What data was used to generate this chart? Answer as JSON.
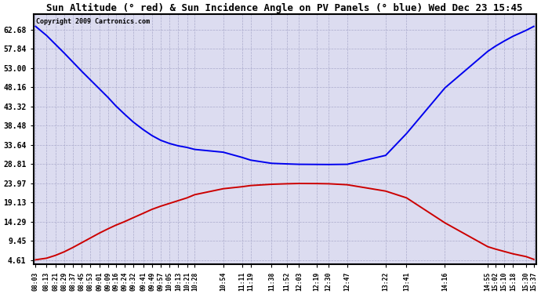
{
  "title": "Sun Altitude (° red) & Sun Incidence Angle on PV Panels (° blue) Wed Dec 23 15:45",
  "copyright": "Copyright 2009 Cartronics.com",
  "background_color": "#ffffff",
  "plot_bg_color": "#dcdcf0",
  "blue_color": "#0000ee",
  "red_color": "#cc0000",
  "grid_color": "#aaaacc",
  "yticks": [
    4.61,
    9.45,
    14.29,
    19.13,
    23.97,
    28.81,
    33.64,
    38.48,
    43.32,
    48.16,
    53.0,
    57.84,
    62.68
  ],
  "xtick_labels": [
    "08:03",
    "08:13",
    "08:21",
    "08:29",
    "08:37",
    "08:45",
    "08:53",
    "09:01",
    "09:09",
    "09:16",
    "09:24",
    "09:32",
    "09:41",
    "09:49",
    "09:57",
    "10:05",
    "10:13",
    "10:21",
    "10:28",
    "10:54",
    "11:11",
    "11:19",
    "11:38",
    "11:52",
    "12:03",
    "12:19",
    "12:30",
    "12:47",
    "13:22",
    "13:41",
    "14:16",
    "14:55",
    "15:02",
    "15:10",
    "15:18",
    "15:30",
    "15:37"
  ],
  "xtick_minutes": [
    483,
    493,
    501,
    509,
    517,
    525,
    533,
    541,
    549,
    556,
    564,
    572,
    581,
    589,
    597,
    605,
    613,
    621,
    628,
    654,
    671,
    679,
    698,
    712,
    723,
    739,
    750,
    767,
    802,
    821,
    856,
    895,
    902,
    910,
    918,
    930,
    937
  ],
  "blue_y": [
    63.5,
    61.2,
    59.0,
    56.8,
    54.5,
    52.2,
    50.0,
    47.8,
    45.6,
    43.5,
    41.4,
    39.4,
    37.5,
    36.0,
    34.8,
    34.0,
    33.4,
    33.0,
    32.5,
    31.8,
    30.5,
    29.8,
    29.0,
    28.85,
    28.75,
    28.72,
    28.7,
    28.75,
    31.0,
    36.5,
    48.0,
    57.2,
    58.5,
    59.8,
    61.0,
    62.5,
    63.5
  ],
  "red_y": [
    4.7,
    5.1,
    5.8,
    6.7,
    7.8,
    9.0,
    10.2,
    11.4,
    12.5,
    13.4,
    14.3,
    15.3,
    16.4,
    17.4,
    18.2,
    18.9,
    19.6,
    20.3,
    21.1,
    22.6,
    23.1,
    23.4,
    23.72,
    23.85,
    23.92,
    23.9,
    23.85,
    23.6,
    22.0,
    20.3,
    14.0,
    8.0,
    7.4,
    6.8,
    6.2,
    5.5,
    4.8
  ],
  "ylim_min": 3.5,
  "ylim_max": 66.5,
  "line_width": 1.4,
  "title_fontsize": 9,
  "tick_fontsize": 7,
  "xtick_fontsize": 5.8
}
